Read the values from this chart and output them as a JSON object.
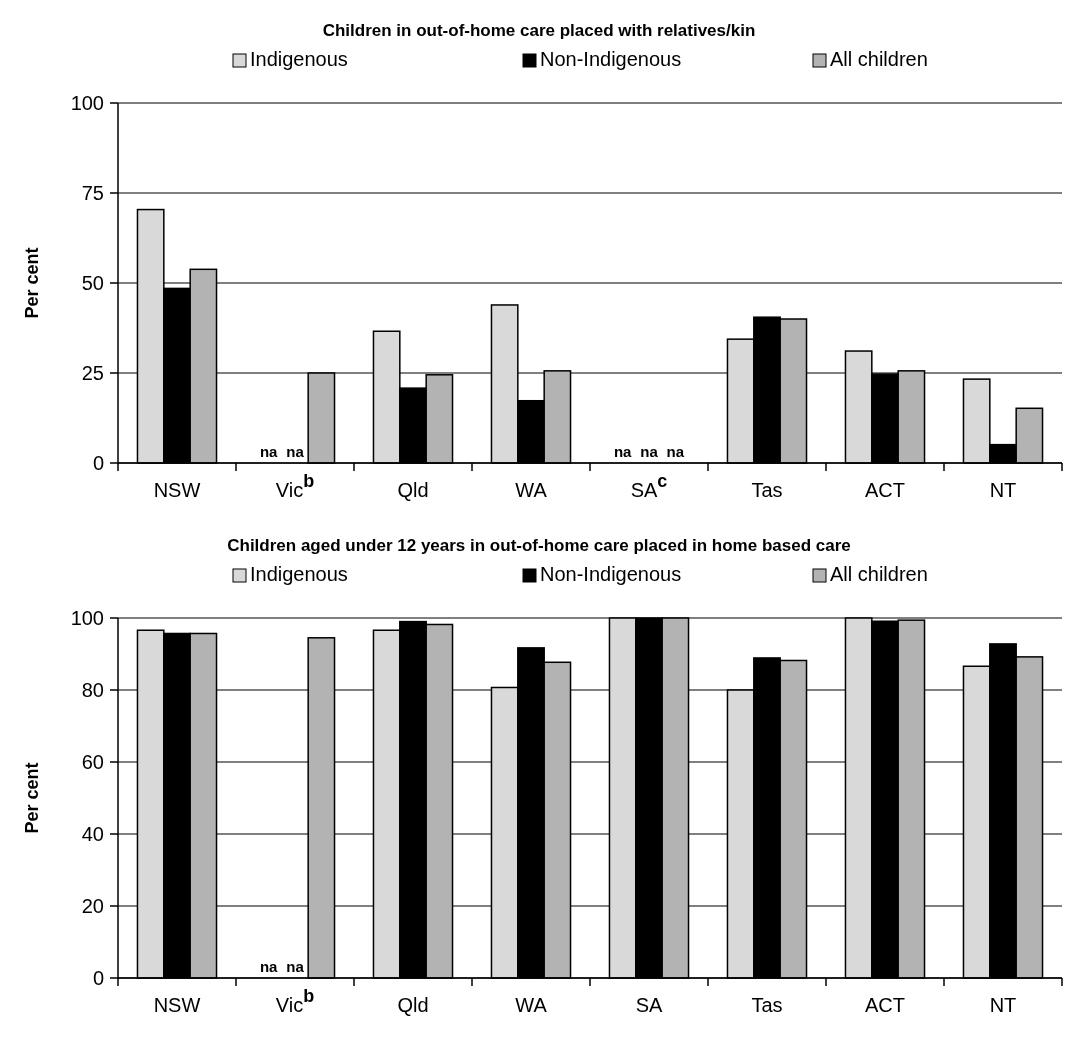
{
  "chart_data": [
    {
      "type": "bar",
      "title": "Children in out-of-home care placed with relatives/kin",
      "ylabel": "Per cent",
      "categories": [
        "NSW",
        "Vic$^{b}$",
        "Qld",
        "WA",
        "SA$^{c}$",
        "Tas",
        "ACT",
        "NT"
      ],
      "ylim": [
        0,
        100
      ],
      "yticks": [
        0,
        25,
        50,
        75,
        100
      ],
      "grid": "y",
      "legend": "top",
      "series": [
        {
          "name": "Indigenous",
          "color": "#d9d9d9",
          "values": [
            70.4,
            null,
            36.6,
            43.9,
            null,
            34.4,
            31.1,
            23.3
          ],
          "value_labels": [
            null,
            "na",
            null,
            null,
            "na",
            null,
            null,
            null
          ]
        },
        {
          "name": "Non-Indigenous",
          "color": "#000000",
          "values": [
            48.5,
            null,
            20.8,
            17.3,
            null,
            40.5,
            24.7,
            5.1
          ],
          "value_labels": [
            null,
            "na",
            null,
            null,
            "na",
            null,
            null,
            null
          ]
        },
        {
          "name": "All children",
          "color": "#b3b3b3",
          "values": [
            53.8,
            25.0,
            24.5,
            25.6,
            null,
            40.0,
            25.6,
            15.2
          ],
          "value_labels": [
            null,
            null,
            null,
            null,
            "na",
            null,
            null,
            null
          ]
        }
      ]
    },
    {
      "type": "bar",
      "title": "Children aged under 12 years in out-of-home care placed in home based care",
      "ylabel": "Per cent",
      "categories": [
        "NSW",
        "Vic$^{b}$",
        "Qld",
        "WA",
        "SA",
        "Tas",
        "ACT",
        "NT"
      ],
      "ylim": [
        0,
        100
      ],
      "yticks": [
        0,
        20,
        40,
        60,
        80,
        100
      ],
      "grid": "y",
      "legend": "top",
      "series": [
        {
          "name": "Indigenous",
          "color": "#d9d9d9",
          "values": [
            96.6,
            null,
            96.6,
            80.7,
            100,
            80.0,
            100,
            86.6
          ],
          "value_labels": [
            null,
            "na",
            null,
            null,
            null,
            null,
            null,
            null
          ]
        },
        {
          "name": "Non-Indigenous",
          "color": "#000000",
          "values": [
            95.7,
            null,
            99.0,
            91.7,
            100,
            88.9,
            99.1,
            92.8
          ],
          "value_labels": [
            null,
            "na",
            null,
            null,
            null,
            null,
            null,
            null
          ]
        },
        {
          "name": "All children",
          "color": "#b3b3b3",
          "values": [
            95.7,
            94.5,
            98.2,
            87.7,
            100,
            88.2,
            99.4,
            89.2
          ]
        }
      ]
    }
  ]
}
